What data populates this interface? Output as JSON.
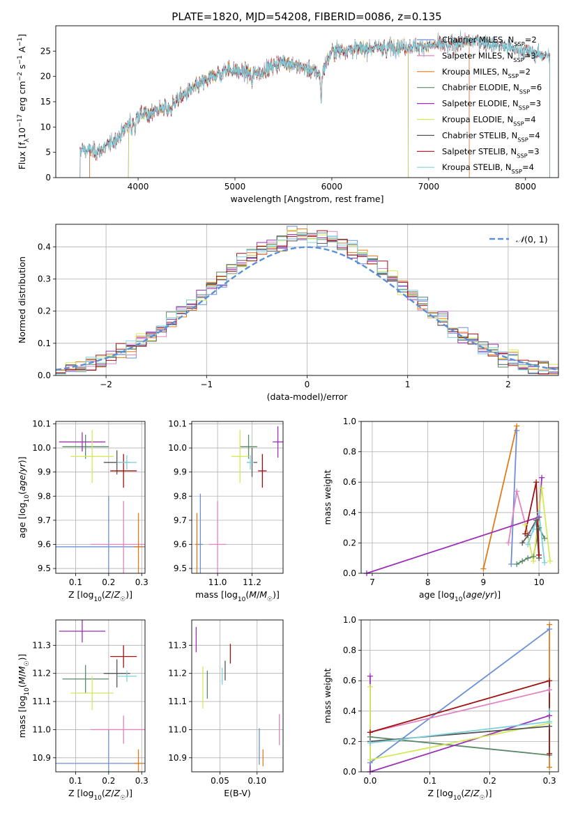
{
  "figure": {
    "title": "PLATE=1820, MJD=54208, FIBERID=0086, z=0.135"
  },
  "chart_data": [
    {
      "id": "spectrum",
      "type": "line",
      "xlabel": "wavelength [Angstrom, rest frame]",
      "ylabel": "Flux [f_λ10^-17 erg cm^-2 s^-1 A^-1]",
      "xlim": [
        3150,
        8340
      ],
      "ylim": [
        0,
        30
      ],
      "xticks": [
        4000,
        5000,
        6000,
        7000,
        8000
      ],
      "yticks": [
        0,
        5,
        10,
        15,
        20,
        25
      ],
      "grid": false,
      "legend_position": "right",
      "series": [
        {
          "name": "Chabrier MILES, N_SSP=2",
          "color": "#6b8fd9",
          "x_start": 3500,
          "x_end": 7420
        },
        {
          "name": "Salpeter MILES, N_SSP=3",
          "color": "#e382c0",
          "x_start": 3500,
          "x_end": 7420
        },
        {
          "name": "Kroupa MILES, N_SSP=2",
          "color": "#e07b1a",
          "x_start": 3500,
          "x_end": 7420
        },
        {
          "name": "Chabrier ELODIE, N_SSP=6",
          "color": "#5a8a6a",
          "x_start": 3900,
          "x_end": 6790
        },
        {
          "name": "Salpeter ELODIE, N_SSP=3",
          "color": "#9b30b5",
          "x_start": 3900,
          "x_end": 6790
        },
        {
          "name": "Kroupa ELODIE, N_SSP=4",
          "color": "#d4e85a",
          "x_start": 3900,
          "x_end": 6790
        },
        {
          "name": "Chabrier STELIB, N_SSP=4",
          "color": "#555555",
          "x_start": 3400,
          "x_end": 8250
        },
        {
          "name": "Salpeter STELIB, N_SSP=3",
          "color": "#a01010",
          "x_start": 3400,
          "x_end": 8250
        },
        {
          "name": "Kroupa STELIB, N_SSP=4",
          "color": "#7fd1de",
          "x_start": 3400,
          "x_end": 8250
        }
      ],
      "continuum_nodes": [
        [
          3400,
          5.5
        ],
        [
          3600,
          5.2
        ],
        [
          3800,
          8.0
        ],
        [
          3950,
          12.0
        ],
        [
          4300,
          14.0
        ],
        [
          4600,
          18.0
        ],
        [
          4900,
          21.5
        ],
        [
          5200,
          20.5
        ],
        [
          5500,
          23.0
        ],
        [
          5890,
          20.5
        ],
        [
          6000,
          25.0
        ],
        [
          6500,
          25.8
        ],
        [
          7000,
          26.0
        ],
        [
          7500,
          27.0
        ],
        [
          8250,
          24.0
        ]
      ]
    },
    {
      "id": "residuals",
      "type": "step-histogram",
      "xlabel": "(data-model)/error",
      "ylabel": "Normed distribution",
      "xlim": [
        -2.5,
        2.5
      ],
      "ylim": [
        0,
        0.47
      ],
      "xticks": [
        -2,
        -1,
        0,
        1,
        2
      ],
      "yticks": [
        0.0,
        0.1,
        0.2,
        0.3,
        0.4
      ],
      "grid": true,
      "legend": [
        {
          "label": "𝒩(0, 1)",
          "style": "dashed",
          "color": "#5b8fd6"
        }
      ],
      "legend_position": "top-right",
      "bin_width": 0.1,
      "curve": "normal pdf, mean 0, sigma 1"
    },
    {
      "id": "age-vs-Z",
      "type": "errorbar",
      "xlabel": "Z [log10(Z/Z☉)]",
      "ylabel": "age  [log10(age/yr)]",
      "xlim": [
        0.04,
        0.31
      ],
      "ylim": [
        9.48,
        10.11
      ],
      "xticks": [
        0.1,
        0.2,
        0.3
      ],
      "yticks": [
        9.5,
        9.6,
        9.7,
        9.8,
        9.9,
        10.0,
        10.1
      ],
      "grid": true,
      "points": [
        {
          "series": "Chabrier MILES",
          "x": 0.2,
          "xerr": 0.2,
          "y": 9.59,
          "yerr": 0.21
        },
        {
          "series": "Salpeter MILES",
          "x": 0.245,
          "xerr": 0.1,
          "y": 9.6,
          "yerr": 0.18
        },
        {
          "series": "Kroupa MILES",
          "x": 0.29,
          "xerr": 0.015,
          "y": 9.59,
          "yerr": 0.14
        },
        {
          "series": "Chabrier ELODIE",
          "x": 0.13,
          "xerr": 0.07,
          "y": 10.005,
          "yerr": 0.05
        },
        {
          "series": "Salpeter ELODIE",
          "x": 0.12,
          "xerr": 0.07,
          "y": 10.025,
          "yerr": 0.04
        },
        {
          "series": "Kroupa ELODIE",
          "x": 0.15,
          "xerr": 0.065,
          "y": 9.965,
          "yerr": 0.11
        },
        {
          "series": "Chabrier STELIB",
          "x": 0.225,
          "xerr": 0.04,
          "y": 9.94,
          "yerr": 0.05
        },
        {
          "series": "Salpeter STELIB",
          "x": 0.245,
          "xerr": 0.04,
          "y": 9.905,
          "yerr": 0.07
        },
        {
          "series": "Kroupa STELIB",
          "x": 0.255,
          "xerr": 0.03,
          "y": 9.94,
          "yerr": 0.03
        }
      ]
    },
    {
      "id": "age-vs-mass",
      "type": "errorbar",
      "xlabel": "mass [log10(M/M☉)]",
      "ylabel": "",
      "xlim": [
        10.85,
        11.38
      ],
      "ylim": [
        9.48,
        10.11
      ],
      "xticks": [
        11.0,
        11.2
      ],
      "yticks": [
        9.5,
        9.6,
        9.7,
        9.8,
        9.9,
        10.0,
        10.1
      ],
      "grid": true,
      "points": [
        {
          "series": "Chabrier MILES",
          "x": 10.9,
          "xerr": 0.015,
          "y": 9.6,
          "yerr": 0.21
        },
        {
          "series": "Salpeter MILES",
          "x": 11.0,
          "xerr": 0.05,
          "y": 9.6,
          "yerr": 0.18
        },
        {
          "series": "Kroupa MILES",
          "x": 10.88,
          "xerr": 0.01,
          "y": 9.6,
          "yerr": 0.13
        },
        {
          "series": "Chabrier ELODIE",
          "x": 11.18,
          "xerr": 0.05,
          "y": 10.005,
          "yerr": 0.05
        },
        {
          "series": "Salpeter ELODIE",
          "x": 11.35,
          "xerr": 0.03,
          "y": 10.025,
          "yerr": 0.065
        },
        {
          "series": "Kroupa ELODIE",
          "x": 11.13,
          "xerr": 0.05,
          "y": 9.965,
          "yerr": 0.11
        },
        {
          "series": "Chabrier STELIB",
          "x": 11.2,
          "xerr": 0.03,
          "y": 9.94,
          "yerr": 0.06
        },
        {
          "series": "Salpeter STELIB",
          "x": 11.26,
          "xerr": 0.025,
          "y": 9.905,
          "yerr": 0.07
        },
        {
          "series": "Kroupa STELIB",
          "x": 11.19,
          "xerr": 0.02,
          "y": 9.94,
          "yerr": 0.03
        }
      ]
    },
    {
      "id": "weight-vs-age",
      "type": "line",
      "xlabel": "age  [log10(age/yr)]",
      "ylabel": "mass weight",
      "xlim": [
        6.8,
        10.35
      ],
      "ylim": [
        0,
        1.0
      ],
      "xticks": [
        7,
        8,
        9,
        10
      ],
      "yticks": [
        0.0,
        0.2,
        0.4,
        0.6,
        0.8,
        1.0
      ],
      "grid": true,
      "series": [
        {
          "name": "Chabrier MILES",
          "x": [
            9.5,
            9.6
          ],
          "y": [
            0.06,
            0.94
          ]
        },
        {
          "name": "Salpeter MILES",
          "x": [
            9.45,
            9.6,
            9.8
          ],
          "y": [
            0.2,
            0.54,
            0.26
          ]
        },
        {
          "name": "Kroupa MILES",
          "x": [
            9.0,
            9.6
          ],
          "y": [
            0.03,
            0.97
          ]
        },
        {
          "name": "Chabrier ELODIE",
          "x": [
            9.6,
            9.7,
            9.8,
            9.9,
            10.0,
            10.1
          ],
          "y": [
            0.06,
            0.08,
            0.1,
            0.11,
            0.3,
            0.23
          ]
        },
        {
          "name": "Salpeter ELODIE",
          "x": [
            6.9,
            10.0,
            10.05
          ],
          "y": [
            0.0,
            0.37,
            0.63
          ]
        },
        {
          "name": "Kroupa ELODIE",
          "x": [
            9.75,
            9.9,
            10.05,
            10.2
          ],
          "y": [
            0.32,
            0.08,
            0.56,
            0.08
          ]
        },
        {
          "name": "Chabrier STELIB",
          "x": [
            9.7,
            9.8,
            9.95,
            10.0
          ],
          "y": [
            0.2,
            0.25,
            0.35,
            0.1
          ]
        },
        {
          "name": "Salpeter STELIB",
          "x": [
            9.75,
            9.95,
            10.0
          ],
          "y": [
            0.26,
            0.6,
            0.12
          ]
        },
        {
          "name": "Kroupa STELIB",
          "x": [
            9.8,
            9.9,
            10.0,
            10.1
          ],
          "y": [
            0.19,
            0.29,
            0.4,
            0.07
          ]
        }
      ]
    },
    {
      "id": "mass-vs-Z",
      "type": "errorbar",
      "xlabel": "Z [log10(Z/Z☉)]",
      "ylabel": "mass [log10(M/M☉)]",
      "xlim": [
        0.04,
        0.31
      ],
      "ylim": [
        10.85,
        11.39
      ],
      "xticks": [
        0.1,
        0.2,
        0.3
      ],
      "yticks": [
        10.9,
        11.0,
        11.1,
        11.2,
        11.3
      ],
      "grid": true,
      "points": [
        {
          "series": "Chabrier MILES",
          "x": 0.2,
          "xerr": 0.2,
          "y": 10.88,
          "yerr": 0.12
        },
        {
          "series": "Salpeter MILES",
          "x": 0.245,
          "xerr": 0.1,
          "y": 11.0,
          "yerr": 0.05
        },
        {
          "series": "Kroupa MILES",
          "x": 0.29,
          "xerr": 0.015,
          "y": 10.88,
          "yerr": 0.05
        },
        {
          "series": "Chabrier ELODIE",
          "x": 0.13,
          "xerr": 0.07,
          "y": 11.18,
          "yerr": 0.05
        },
        {
          "series": "Salpeter ELODIE",
          "x": 0.12,
          "xerr": 0.07,
          "y": 11.35,
          "yerr": 0.04
        },
        {
          "series": "Kroupa ELODIE",
          "x": 0.15,
          "xerr": 0.065,
          "y": 11.13,
          "yerr": 0.06
        },
        {
          "series": "Chabrier STELIB",
          "x": 0.225,
          "xerr": 0.04,
          "y": 11.2,
          "yerr": 0.05
        },
        {
          "series": "Salpeter STELIB",
          "x": 0.245,
          "xerr": 0.04,
          "y": 11.26,
          "yerr": 0.04
        },
        {
          "series": "Kroupa STELIB",
          "x": 0.255,
          "xerr": 0.03,
          "y": 11.19,
          "yerr": 0.02
        }
      ]
    },
    {
      "id": "mass-vs-EBV",
      "type": "errorbar",
      "xlabel": "E(B-V)",
      "ylabel": "",
      "xlim": [
        0.012,
        0.135
      ],
      "ylim": [
        10.85,
        11.39
      ],
      "xticks": [
        0.05,
        0.1
      ],
      "yticks": [
        10.9,
        11.0,
        11.1,
        11.2,
        11.3
      ],
      "grid": true,
      "points": [
        {
          "series": "Chabrier MILES",
          "x": 0.103,
          "y": 10.94,
          "yerr": 0.065
        },
        {
          "series": "Salpeter MILES",
          "x": 0.13,
          "y": 11.0,
          "yerr": 0.055
        },
        {
          "series": "Kroupa MILES",
          "x": 0.108,
          "y": 10.9,
          "yerr": 0.03
        },
        {
          "series": "Chabrier ELODIE",
          "x": 0.033,
          "y": 11.16,
          "yerr": 0.05
        },
        {
          "series": "Salpeter ELODIE",
          "x": 0.018,
          "y": 11.32,
          "yerr": 0.045
        },
        {
          "series": "Kroupa ELODIE",
          "x": 0.027,
          "y": 11.15,
          "yerr": 0.075
        },
        {
          "series": "Chabrier STELIB",
          "x": 0.057,
          "y": 11.21,
          "yerr": 0.035
        },
        {
          "series": "Salpeter STELIB",
          "x": 0.064,
          "y": 11.27,
          "yerr": 0.035
        },
        {
          "series": "Kroupa STELIB",
          "x": 0.053,
          "y": 11.19,
          "yerr": 0.03
        }
      ]
    },
    {
      "id": "weight-vs-Z",
      "type": "line",
      "xlabel": "Z [log10(Z/Z☉)]",
      "ylabel": "mass weight",
      "xlim": [
        -0.015,
        0.315
      ],
      "ylim": [
        0,
        1.0
      ],
      "xticks": [
        0.0,
        0.1,
        0.2,
        0.3
      ],
      "yticks": [
        0.0,
        0.2,
        0.4,
        0.6,
        0.8,
        1.0
      ],
      "grid": true,
      "series": [
        {
          "name": "Chabrier MILES",
          "x": [
            0.0,
            0.3
          ],
          "y": [
            0.06,
            0.94
          ]
        },
        {
          "name": "Salpeter MILES",
          "x": [
            0.0,
            0.3
          ],
          "y": [
            0.26,
            0.54
          ]
        },
        {
          "name": "Kroupa MILES",
          "x": [
            0.3,
            0.3
          ],
          "y": [
            0.03,
            0.97
          ]
        },
        {
          "name": "Chabrier ELODIE",
          "x": [
            0.0,
            0.3
          ],
          "y": [
            0.23,
            0.11
          ]
        },
        {
          "name": "Salpeter ELODIE",
          "x": [
            0.0,
            0.0,
            0.3
          ],
          "y": [
            0.63,
            0.0,
            0.37
          ]
        },
        {
          "name": "Kroupa ELODIE",
          "x": [
            0.0,
            0.0,
            0.3
          ],
          "y": [
            0.56,
            0.08,
            0.32
          ]
        },
        {
          "name": "Chabrier STELIB",
          "x": [
            0.0,
            0.3
          ],
          "y": [
            0.2,
            0.3
          ]
        },
        {
          "name": "Salpeter STELIB",
          "x": [
            0.0,
            0.3,
            0.3
          ],
          "y": [
            0.26,
            0.6,
            0.12
          ]
        },
        {
          "name": "Kroupa STELIB",
          "x": [
            0.0,
            0.3,
            0.3
          ],
          "y": [
            0.19,
            0.33,
            0.4
          ]
        }
      ]
    }
  ]
}
